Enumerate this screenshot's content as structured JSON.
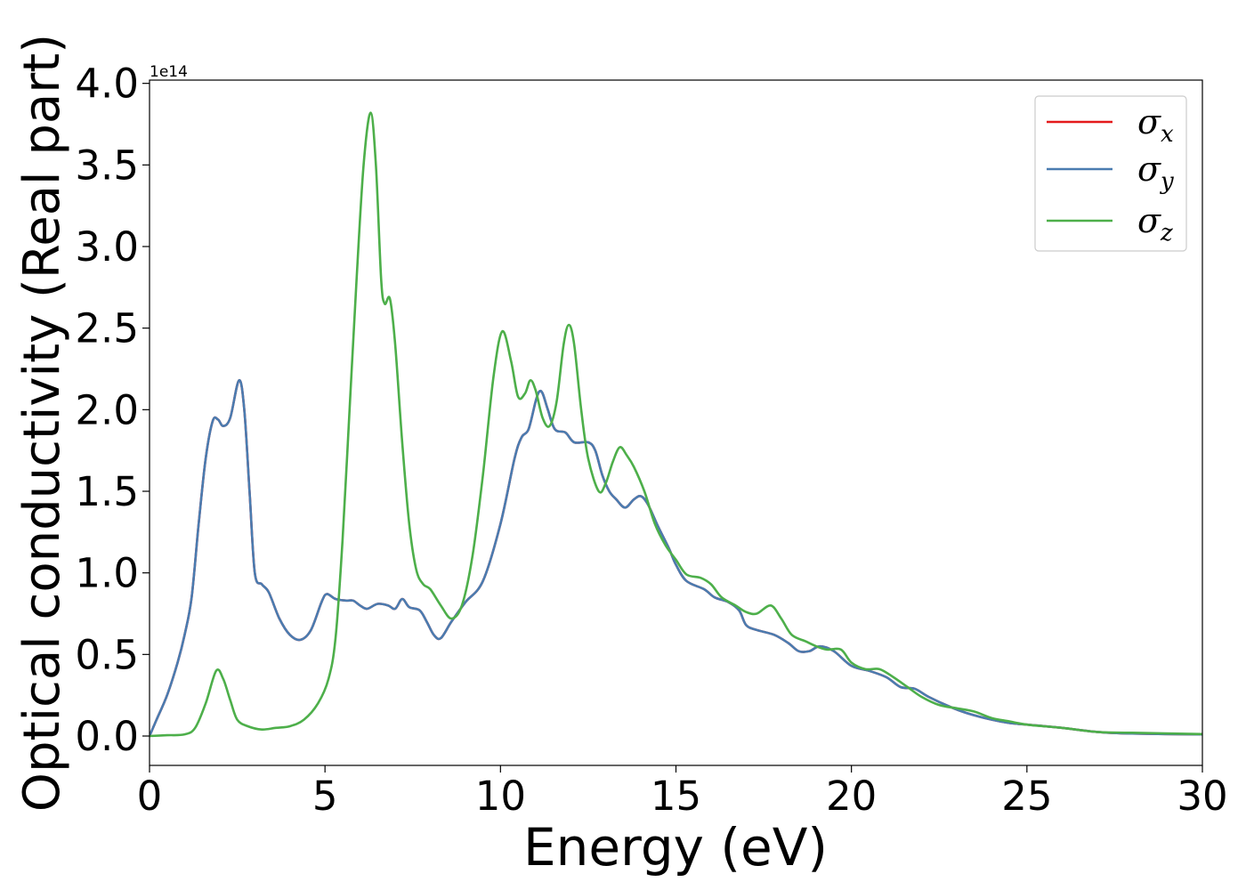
{
  "chart_data": {
    "type": "line",
    "title": "",
    "xlabel": "Energy (eV)",
    "ylabel": "Optical conductivity (Real part)",
    "y_offset_label": "1e14",
    "xlim": [
      0,
      30
    ],
    "ylim": [
      -0.18,
      4.02
    ],
    "x_ticks": [
      0,
      5,
      10,
      15,
      20,
      25,
      30
    ],
    "y_ticks": [
      0.0,
      0.5,
      1.0,
      1.5,
      2.0,
      2.5,
      3.0,
      3.5,
      4.0
    ],
    "grid": false,
    "legend_position": "top-right",
    "series": [
      {
        "name": "σ",
        "subscript": "x",
        "color": "#e41a1c",
        "points": [
          [
            0,
            0
          ],
          [
            0.2,
            0.1
          ],
          [
            0.5,
            0.25
          ],
          [
            0.8,
            0.45
          ],
          [
            1.0,
            0.62
          ],
          [
            1.2,
            0.85
          ],
          [
            1.4,
            1.3
          ],
          [
            1.6,
            1.7
          ],
          [
            1.8,
            1.93
          ],
          [
            1.95,
            1.94
          ],
          [
            2.1,
            1.9
          ],
          [
            2.3,
            1.95
          ],
          [
            2.55,
            2.18
          ],
          [
            2.7,
            2.0
          ],
          [
            2.85,
            1.5
          ],
          [
            3.0,
            1.0
          ],
          [
            3.2,
            0.93
          ],
          [
            3.4,
            0.88
          ],
          [
            3.7,
            0.72
          ],
          [
            4.0,
            0.62
          ],
          [
            4.3,
            0.59
          ],
          [
            4.6,
            0.65
          ],
          [
            4.9,
            0.82
          ],
          [
            5.05,
            0.87
          ],
          [
            5.3,
            0.84
          ],
          [
            5.6,
            0.83
          ],
          [
            5.8,
            0.83
          ],
          [
            6.0,
            0.8
          ],
          [
            6.2,
            0.78
          ],
          [
            6.5,
            0.81
          ],
          [
            6.8,
            0.8
          ],
          [
            7.0,
            0.78
          ],
          [
            7.2,
            0.84
          ],
          [
            7.4,
            0.79
          ],
          [
            7.7,
            0.77
          ],
          [
            7.9,
            0.7
          ],
          [
            8.1,
            0.62
          ],
          [
            8.3,
            0.6
          ],
          [
            8.6,
            0.7
          ],
          [
            9.0,
            0.82
          ],
          [
            9.5,
            0.95
          ],
          [
            10.0,
            1.3
          ],
          [
            10.4,
            1.7
          ],
          [
            10.6,
            1.83
          ],
          [
            10.8,
            1.88
          ],
          [
            11.0,
            2.05
          ],
          [
            11.1,
            2.11
          ],
          [
            11.2,
            2.1
          ],
          [
            11.35,
            2.0
          ],
          [
            11.55,
            1.88
          ],
          [
            11.85,
            1.86
          ],
          [
            12.1,
            1.8
          ],
          [
            12.5,
            1.8
          ],
          [
            12.7,
            1.75
          ],
          [
            12.9,
            1.6
          ],
          [
            13.1,
            1.5
          ],
          [
            13.3,
            1.45
          ],
          [
            13.55,
            1.4
          ],
          [
            13.8,
            1.45
          ],
          [
            14.0,
            1.47
          ],
          [
            14.2,
            1.42
          ],
          [
            14.5,
            1.28
          ],
          [
            14.8,
            1.15
          ],
          [
            15.0,
            1.05
          ],
          [
            15.3,
            0.95
          ],
          [
            15.8,
            0.9
          ],
          [
            16.1,
            0.85
          ],
          [
            16.5,
            0.82
          ],
          [
            16.8,
            0.77
          ],
          [
            17.0,
            0.68
          ],
          [
            17.3,
            0.65
          ],
          [
            17.8,
            0.62
          ],
          [
            18.2,
            0.57
          ],
          [
            18.5,
            0.52
          ],
          [
            18.8,
            0.52
          ],
          [
            19.1,
            0.55
          ],
          [
            19.5,
            0.52
          ],
          [
            20.0,
            0.43
          ],
          [
            20.5,
            0.4
          ],
          [
            21.0,
            0.36
          ],
          [
            21.4,
            0.3
          ],
          [
            21.8,
            0.29
          ],
          [
            22.2,
            0.24
          ],
          [
            22.8,
            0.18
          ],
          [
            23.3,
            0.14
          ],
          [
            24.0,
            0.1
          ],
          [
            24.5,
            0.08
          ],
          [
            25.0,
            0.07
          ],
          [
            26.0,
            0.05
          ],
          [
            27.0,
            0.025
          ],
          [
            28.0,
            0.015
          ],
          [
            30.0,
            0.01
          ]
        ]
      },
      {
        "name": "σ",
        "subscript": "y",
        "color": "#4a7cb0",
        "points": [
          [
            0,
            0
          ],
          [
            0.2,
            0.1
          ],
          [
            0.5,
            0.25
          ],
          [
            0.8,
            0.45
          ],
          [
            1.0,
            0.62
          ],
          [
            1.2,
            0.85
          ],
          [
            1.4,
            1.3
          ],
          [
            1.6,
            1.7
          ],
          [
            1.8,
            1.93
          ],
          [
            1.95,
            1.94
          ],
          [
            2.1,
            1.9
          ],
          [
            2.3,
            1.95
          ],
          [
            2.55,
            2.18
          ],
          [
            2.7,
            2.0
          ],
          [
            2.85,
            1.5
          ],
          [
            3.0,
            1.0
          ],
          [
            3.2,
            0.93
          ],
          [
            3.4,
            0.88
          ],
          [
            3.7,
            0.72
          ],
          [
            4.0,
            0.62
          ],
          [
            4.3,
            0.59
          ],
          [
            4.6,
            0.65
          ],
          [
            4.9,
            0.82
          ],
          [
            5.05,
            0.87
          ],
          [
            5.3,
            0.84
          ],
          [
            5.6,
            0.83
          ],
          [
            5.8,
            0.83
          ],
          [
            6.0,
            0.8
          ],
          [
            6.2,
            0.78
          ],
          [
            6.5,
            0.81
          ],
          [
            6.8,
            0.8
          ],
          [
            7.0,
            0.78
          ],
          [
            7.2,
            0.84
          ],
          [
            7.4,
            0.79
          ],
          [
            7.7,
            0.77
          ],
          [
            7.9,
            0.7
          ],
          [
            8.1,
            0.62
          ],
          [
            8.3,
            0.6
          ],
          [
            8.6,
            0.7
          ],
          [
            9.0,
            0.82
          ],
          [
            9.5,
            0.95
          ],
          [
            10.0,
            1.3
          ],
          [
            10.4,
            1.7
          ],
          [
            10.6,
            1.83
          ],
          [
            10.8,
            1.88
          ],
          [
            11.0,
            2.05
          ],
          [
            11.1,
            2.11
          ],
          [
            11.2,
            2.1
          ],
          [
            11.35,
            2.0
          ],
          [
            11.55,
            1.88
          ],
          [
            11.85,
            1.86
          ],
          [
            12.1,
            1.8
          ],
          [
            12.5,
            1.8
          ],
          [
            12.7,
            1.75
          ],
          [
            12.9,
            1.6
          ],
          [
            13.1,
            1.5
          ],
          [
            13.3,
            1.45
          ],
          [
            13.55,
            1.4
          ],
          [
            13.8,
            1.45
          ],
          [
            14.0,
            1.47
          ],
          [
            14.2,
            1.42
          ],
          [
            14.5,
            1.28
          ],
          [
            14.8,
            1.15
          ],
          [
            15.0,
            1.05
          ],
          [
            15.3,
            0.95
          ],
          [
            15.8,
            0.9
          ],
          [
            16.1,
            0.85
          ],
          [
            16.5,
            0.82
          ],
          [
            16.8,
            0.77
          ],
          [
            17.0,
            0.68
          ],
          [
            17.3,
            0.65
          ],
          [
            17.8,
            0.62
          ],
          [
            18.2,
            0.57
          ],
          [
            18.5,
            0.52
          ],
          [
            18.8,
            0.52
          ],
          [
            19.1,
            0.55
          ],
          [
            19.5,
            0.52
          ],
          [
            20.0,
            0.43
          ],
          [
            20.5,
            0.4
          ],
          [
            21.0,
            0.36
          ],
          [
            21.4,
            0.3
          ],
          [
            21.8,
            0.29
          ],
          [
            22.2,
            0.24
          ],
          [
            22.8,
            0.18
          ],
          [
            23.3,
            0.14
          ],
          [
            24.0,
            0.1
          ],
          [
            24.5,
            0.08
          ],
          [
            25.0,
            0.07
          ],
          [
            26.0,
            0.05
          ],
          [
            27.0,
            0.025
          ],
          [
            28.0,
            0.015
          ],
          [
            30.0,
            0.01
          ]
        ]
      },
      {
        "name": "σ",
        "subscript": "z",
        "color": "#4daf4a",
        "points": [
          [
            0,
            0
          ],
          [
            0.5,
            0.005
          ],
          [
            1.0,
            0.01
          ],
          [
            1.3,
            0.05
          ],
          [
            1.6,
            0.2
          ],
          [
            1.9,
            0.4
          ],
          [
            2.1,
            0.35
          ],
          [
            2.3,
            0.22
          ],
          [
            2.5,
            0.1
          ],
          [
            2.8,
            0.06
          ],
          [
            3.2,
            0.04
          ],
          [
            3.6,
            0.05
          ],
          [
            4.0,
            0.06
          ],
          [
            4.4,
            0.1
          ],
          [
            4.8,
            0.2
          ],
          [
            5.1,
            0.35
          ],
          [
            5.3,
            0.6
          ],
          [
            5.5,
            1.2
          ],
          [
            5.7,
            2.0
          ],
          [
            5.9,
            2.8
          ],
          [
            6.1,
            3.5
          ],
          [
            6.3,
            3.82
          ],
          [
            6.45,
            3.5
          ],
          [
            6.6,
            2.8
          ],
          [
            6.7,
            2.65
          ],
          [
            6.85,
            2.68
          ],
          [
            7.0,
            2.4
          ],
          [
            7.2,
            1.8
          ],
          [
            7.4,
            1.3
          ],
          [
            7.6,
            1.02
          ],
          [
            7.8,
            0.93
          ],
          [
            8.0,
            0.9
          ],
          [
            8.3,
            0.8
          ],
          [
            8.6,
            0.72
          ],
          [
            8.9,
            0.8
          ],
          [
            9.2,
            1.1
          ],
          [
            9.5,
            1.6
          ],
          [
            9.8,
            2.2
          ],
          [
            10.05,
            2.48
          ],
          [
            10.3,
            2.3
          ],
          [
            10.5,
            2.08
          ],
          [
            10.7,
            2.1
          ],
          [
            10.85,
            2.18
          ],
          [
            11.0,
            2.12
          ],
          [
            11.2,
            1.95
          ],
          [
            11.4,
            1.9
          ],
          [
            11.6,
            2.05
          ],
          [
            11.8,
            2.4
          ],
          [
            11.95,
            2.52
          ],
          [
            12.1,
            2.4
          ],
          [
            12.3,
            2.0
          ],
          [
            12.5,
            1.7
          ],
          [
            12.8,
            1.5
          ],
          [
            13.0,
            1.55
          ],
          [
            13.2,
            1.68
          ],
          [
            13.4,
            1.77
          ],
          [
            13.6,
            1.72
          ],
          [
            13.8,
            1.65
          ],
          [
            14.1,
            1.5
          ],
          [
            14.4,
            1.3
          ],
          [
            14.7,
            1.17
          ],
          [
            15.0,
            1.08
          ],
          [
            15.3,
            0.99
          ],
          [
            15.7,
            0.97
          ],
          [
            16.0,
            0.93
          ],
          [
            16.3,
            0.85
          ],
          [
            16.7,
            0.8
          ],
          [
            17.0,
            0.76
          ],
          [
            17.3,
            0.75
          ],
          [
            17.7,
            0.8
          ],
          [
            18.0,
            0.72
          ],
          [
            18.3,
            0.62
          ],
          [
            18.7,
            0.58
          ],
          [
            19.0,
            0.55
          ],
          [
            19.3,
            0.53
          ],
          [
            19.7,
            0.53
          ],
          [
            20.0,
            0.45
          ],
          [
            20.4,
            0.41
          ],
          [
            20.8,
            0.41
          ],
          [
            21.2,
            0.36
          ],
          [
            21.6,
            0.3
          ],
          [
            22.0,
            0.24
          ],
          [
            22.5,
            0.19
          ],
          [
            23.0,
            0.17
          ],
          [
            23.5,
            0.15
          ],
          [
            24.0,
            0.11
          ],
          [
            24.5,
            0.09
          ],
          [
            25.0,
            0.07
          ],
          [
            26.0,
            0.05
          ],
          [
            27.0,
            0.025
          ],
          [
            28.0,
            0.02
          ],
          [
            30.0,
            0.012
          ]
        ]
      }
    ]
  }
}
